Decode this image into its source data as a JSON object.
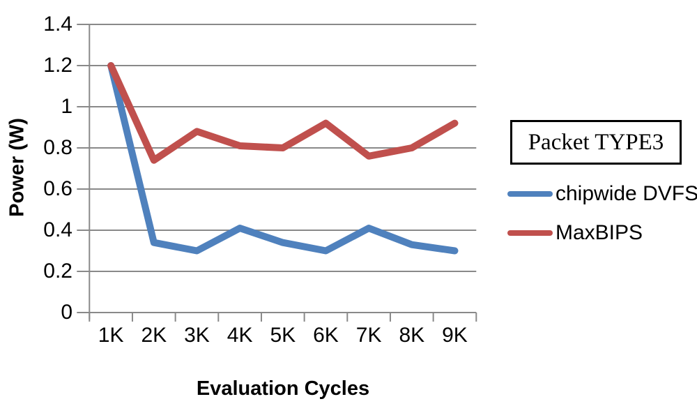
{
  "chart_data": {
    "type": "line",
    "xlabel": "Evaluation Cycles",
    "ylabel": "Power (W)",
    "categories": [
      "1K",
      "2K",
      "3K",
      "4K",
      "5K",
      "6K",
      "7K",
      "8K",
      "9K"
    ],
    "series": [
      {
        "name": "chipwide DVFS",
        "color": "#4F81BD",
        "values": [
          1.2,
          0.34,
          0.3,
          0.41,
          0.34,
          0.3,
          0.41,
          0.33,
          0.3
        ]
      },
      {
        "name": "MaxBIPS",
        "color": "#C0504D",
        "values": [
          1.2,
          0.74,
          0.88,
          0.81,
          0.8,
          0.92,
          0.76,
          0.8,
          0.92
        ]
      }
    ],
    "ylim": [
      0,
      1.4
    ],
    "ytick_step": 0.2,
    "ytick_labels_top_to_bottom": [
      "1.4",
      "1.2",
      "1",
      "0.8",
      "0.6",
      "0.4",
      "0.2",
      "0"
    ],
    "grid": "horizontal",
    "legend_position": "right"
  },
  "legend": {
    "title": "Packet TYPE3"
  },
  "colors": {
    "axis_and_grid": "#898989",
    "text": "#000000",
    "background": "#FFFFFF"
  }
}
